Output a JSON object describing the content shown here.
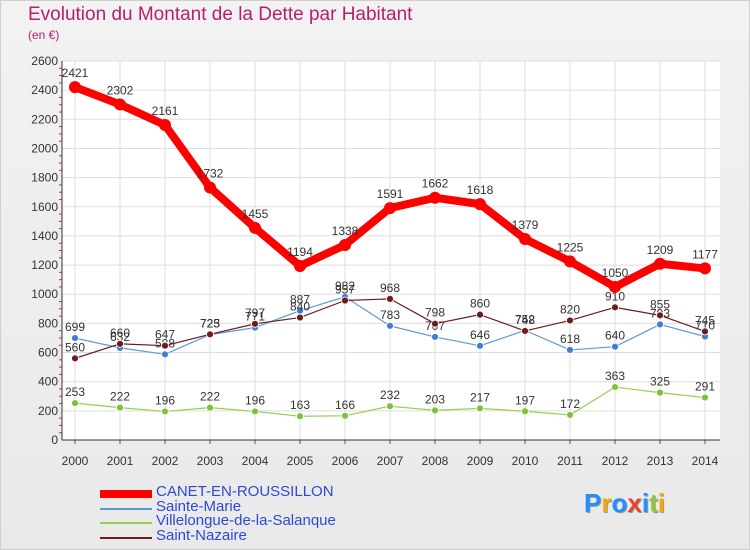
{
  "chart_data": {
    "type": "line",
    "title": "Evolution du Montant de la Dette par Habitant",
    "subtitle": "(en €)",
    "x": [
      "2000",
      "2001",
      "2002",
      "2003",
      "2004",
      "2005",
      "2006",
      "2007",
      "2008",
      "2009",
      "2010",
      "2011",
      "2012",
      "2013",
      "2014"
    ],
    "ylim": [
      0,
      2600
    ],
    "yticks": [
      "0",
      "200",
      "400",
      "600",
      "800",
      "1000",
      "1200",
      "1400",
      "1600",
      "1800",
      "2000",
      "2200",
      "2400",
      "2600"
    ],
    "grid": true,
    "legend_position": "bottom-left",
    "series": [
      {
        "name": "CANET-EN-ROUSSILLON",
        "color": "#ff0000",
        "values": [
          2421,
          2302,
          2161,
          1732,
          1455,
          1194,
          1338,
          1591,
          1662,
          1618,
          1379,
          1225,
          1050,
          1209,
          1177
        ]
      },
      {
        "name": "Sainte-Marie",
        "color": "#5b9bd5",
        "values": [
          699,
          632,
          588,
          723,
          771,
          887,
          982,
          783,
          707,
          646,
          752,
          618,
          640,
          793,
          710
        ]
      },
      {
        "name": "Villelongue-de-la-Salanque",
        "color": "#92d050",
        "values": [
          253,
          222,
          196,
          222,
          196,
          163,
          166,
          232,
          203,
          217,
          197,
          172,
          363,
          325,
          291
        ]
      },
      {
        "name": "Saint-Nazaire",
        "color": "#6d1b1b",
        "values": [
          560,
          660,
          647,
          725,
          797,
          840,
          957,
          968,
          798,
          860,
          748,
          820,
          910,
          855,
          745
        ]
      }
    ]
  },
  "logo": {
    "letters": [
      "P",
      "r",
      "o",
      "x",
      "i",
      "t",
      "i"
    ],
    "colors": [
      "#1e90ff",
      "#f7a800",
      "#1e90ff",
      "#e4452a",
      "#1e90ff",
      "#8dc63f",
      "#f7a800"
    ]
  }
}
